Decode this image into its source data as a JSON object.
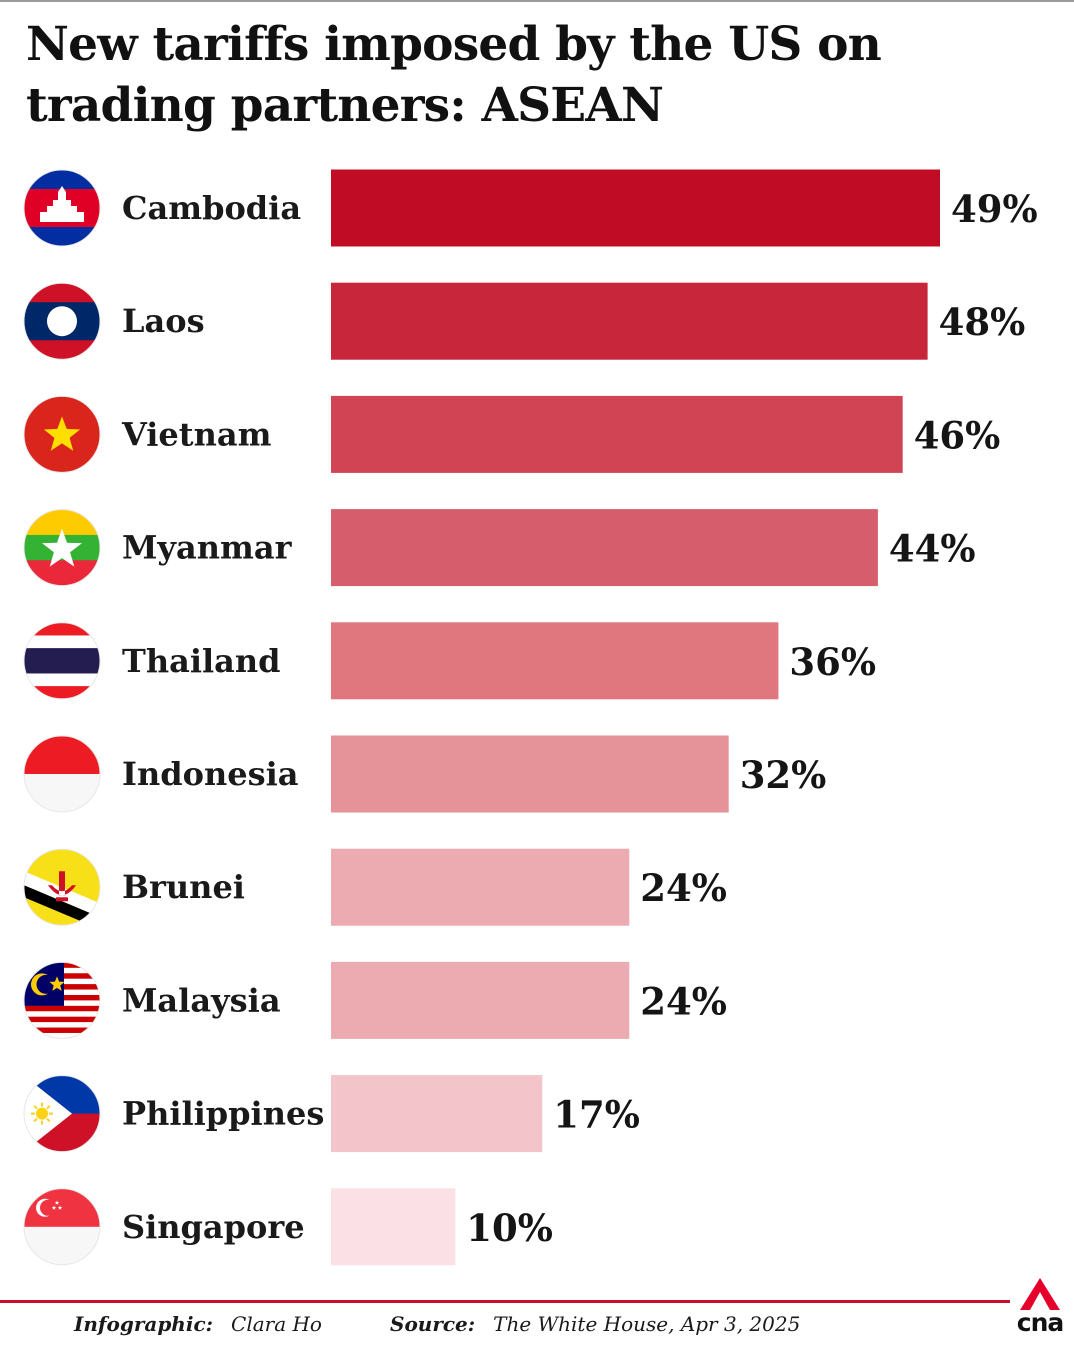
{
  "title": "New tariffs imposed by the US on trading partners: ASEAN",
  "chart_data": {
    "type": "bar",
    "orientation": "horizontal",
    "title": "New tariffs imposed by the US on trading partners: ASEAN",
    "categories": [
      "Cambodia",
      "Laos",
      "Vietnam",
      "Myanmar",
      "Thailand",
      "Indonesia",
      "Brunei",
      "Malaysia",
      "Philippines",
      "Singapore"
    ],
    "values": [
      49,
      48,
      46,
      44,
      36,
      32,
      24,
      24,
      17,
      10
    ],
    "value_labels": [
      "49%",
      "48%",
      "46%",
      "44%",
      "36%",
      "32%",
      "24%",
      "24%",
      "17%",
      "10%"
    ],
    "bar_colors": [
      "#c10c25",
      "#c8263b",
      "#d04454",
      "#d65e6c",
      "#e0777f",
      "#e69299",
      "#ecabb0",
      "#ecabb0",
      "#f3c4ca",
      "#fbe1e5"
    ],
    "flag_icons": [
      "cambodia-flag-icon",
      "laos-flag-icon",
      "vietnam-flag-icon",
      "myanmar-flag-icon",
      "thailand-flag-icon",
      "indonesia-flag-icon",
      "brunei-flag-icon",
      "malaysia-flag-icon",
      "philippines-flag-icon",
      "singapore-flag-icon"
    ],
    "xlim": [
      0,
      49
    ],
    "grid": false,
    "legend": "none"
  },
  "footer": {
    "credit_label": "Infographic:",
    "credit_value": "Clara Ho",
    "source_label": "Source:",
    "source_value": "The White House, Apr 3, 2025"
  },
  "logo": {
    "text": "cna",
    "accent": "#e4002b"
  }
}
